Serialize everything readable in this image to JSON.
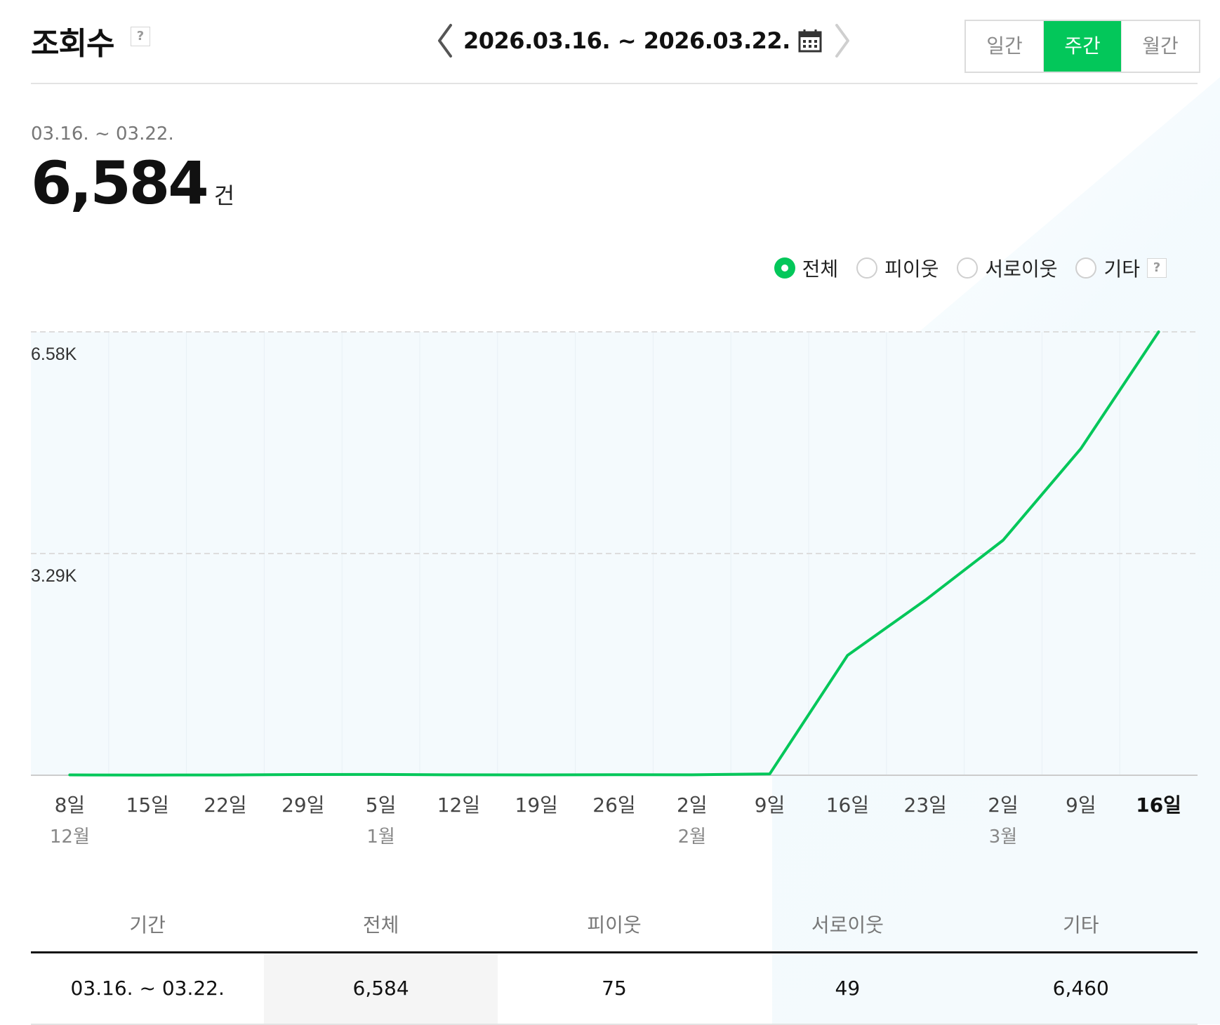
{
  "header": {
    "title": "조회수",
    "help": "?",
    "date_range": "2026.03.16. ~ 2026.03.22.",
    "period_tabs": [
      {
        "label": "일간",
        "active": false
      },
      {
        "label": "주간",
        "active": true
      },
      {
        "label": "월간",
        "active": false
      }
    ]
  },
  "summary": {
    "range": "03.16. ~ 03.22.",
    "total": "6,584",
    "unit": "건"
  },
  "filters": [
    {
      "label": "전체",
      "checked": true
    },
    {
      "label": "피이웃",
      "checked": false
    },
    {
      "label": "서로이웃",
      "checked": false
    },
    {
      "label": "기타",
      "checked": false
    }
  ],
  "filter_help": "?",
  "colors": {
    "accent": "#03c75a",
    "chart_bg": "#f4fafd",
    "grid": "#dddddd"
  },
  "chart_data": {
    "type": "line",
    "x": [
      "8일",
      "15일",
      "22일",
      "29일",
      "5일",
      "12일",
      "19일",
      "26일",
      "2일",
      "9일",
      "16일",
      "23일",
      "2일",
      "9일",
      "16일"
    ],
    "month_labels": [
      "12월",
      "",
      "",
      "",
      "1월",
      "",
      "",
      "",
      "2월",
      "",
      "",
      "",
      "3월",
      "",
      ""
    ],
    "series": [
      {
        "values": [
          5,
          3,
          4,
          10,
          12,
          6,
          5,
          8,
          7,
          20,
          1780,
          2600,
          3490,
          4850,
          6584
        ]
      }
    ],
    "yticks": [
      {
        "value": 3292,
        "label": "3.29K"
      },
      {
        "value": 6584,
        "label": "6.58K"
      }
    ],
    "ylim": [
      0,
      6584
    ],
    "highlight_last": true
  },
  "table": {
    "headers": [
      "기간",
      "전체",
      "피이웃",
      "서로이웃",
      "기타"
    ],
    "rows": [
      [
        "03.16. ~ 03.22.",
        "6,584",
        "75",
        "49",
        "6,460"
      ]
    ]
  }
}
